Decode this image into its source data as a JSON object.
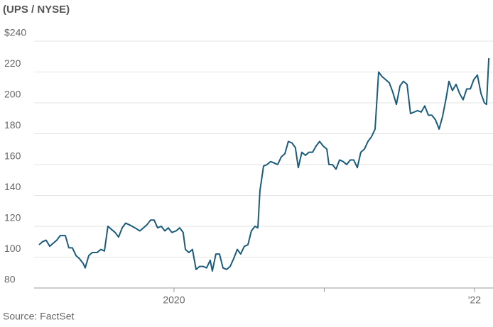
{
  "chart_data": {
    "type": "line",
    "title": "(UPS / NYSE)",
    "source": "Source: FactSet",
    "x": [
      2019.102,
      2019.125,
      2019.149,
      2019.173,
      2019.196,
      2019.22,
      2019.243,
      2019.277,
      2019.3,
      2019.324,
      2019.348,
      2019.371,
      2019.395,
      2019.409,
      2019.433,
      2019.456,
      2019.489,
      2019.513,
      2019.537,
      2019.56,
      2019.584,
      2019.608,
      2019.631,
      2019.655,
      2019.678,
      2019.702,
      2019.74,
      2019.773,
      2019.797,
      2019.82,
      2019.844,
      2019.868,
      2019.891,
      2019.915,
      2019.939,
      2019.962,
      2019.986,
      2020.014,
      2020.038,
      2020.061,
      2020.076,
      2020.099,
      2020.123,
      2020.147,
      2020.17,
      2020.194,
      2020.217,
      2020.241,
      2020.255,
      2020.279,
      2020.303,
      2020.326,
      2020.35,
      2020.374,
      2020.397,
      2020.421,
      2020.444,
      2020.468,
      2020.492,
      2020.515,
      2020.539,
      2020.558,
      2020.572,
      2020.596,
      2020.619,
      2020.643,
      2020.667,
      2020.69,
      2020.714,
      2020.738,
      2020.761,
      2020.785,
      2020.808,
      2020.827,
      2020.851,
      2020.875,
      2020.898,
      2020.922,
      2020.946,
      2020.969,
      2020.993,
      2021.017,
      2021.031,
      2021.054,
      2021.078,
      2021.102,
      2021.125,
      2021.149,
      2021.173,
      2021.196,
      2021.22,
      2021.243,
      2021.267,
      2021.291,
      2021.314,
      2021.338,
      2021.362,
      2021.385,
      2021.409,
      2021.433,
      2021.456,
      2021.48,
      2021.504,
      2021.527,
      2021.551,
      2021.574,
      2021.598,
      2021.622,
      2021.645,
      2021.669,
      2021.693,
      2021.716,
      2021.74,
      2021.764,
      2021.787,
      2021.811,
      2021.83,
      2021.853,
      2021.877,
      2021.901,
      2021.924,
      2021.948,
      2021.972,
      2021.995,
      2022.019,
      2022.043,
      2022.066,
      2022.08,
      2022.095
    ],
    "series": [
      {
        "color": "#1b5c7e",
        "values": [
          108,
          110,
          111,
          107,
          109,
          111,
          114,
          114,
          106,
          106,
          101,
          99,
          96,
          93,
          101,
          103,
          103,
          105,
          104,
          120,
          118,
          116,
          113,
          119,
          122,
          121,
          119,
          117,
          119,
          121,
          124,
          124,
          119,
          120,
          117,
          119,
          116,
          117,
          119,
          116,
          105,
          103,
          105,
          92,
          94,
          94,
          93,
          98,
          91,
          102,
          102,
          93,
          92,
          94,
          99,
          105,
          102,
          107,
          108,
          117,
          120,
          119,
          143,
          159,
          160,
          162,
          161,
          160,
          165,
          167,
          175,
          174,
          171,
          158,
          168,
          166,
          168,
          168,
          172,
          175,
          172,
          170,
          160,
          160,
          157,
          163,
          162,
          160,
          163,
          163,
          158,
          168,
          170,
          175,
          178,
          183,
          220,
          217,
          215,
          213,
          207,
          199,
          211,
          214,
          212,
          193,
          194,
          195,
          194,
          198,
          192,
          192,
          189,
          183,
          191,
          203,
          214,
          208,
          212,
          206,
          202,
          209,
          209,
          215,
          218,
          206,
          200,
          199,
          229
        ]
      }
    ],
    "xlim": [
      2019.069,
      2022.123
    ],
    "xticks": [
      2020,
      {
        "value": 2021,
        "label": null
      },
      {
        "value": 2022,
        "label": "'22"
      }
    ],
    "ylim": [
      80,
      240
    ],
    "yticks": [
      80,
      100,
      120,
      140,
      160,
      180,
      200,
      220,
      {
        "value": 240,
        "label": "$240"
      }
    ],
    "grid": true
  }
}
